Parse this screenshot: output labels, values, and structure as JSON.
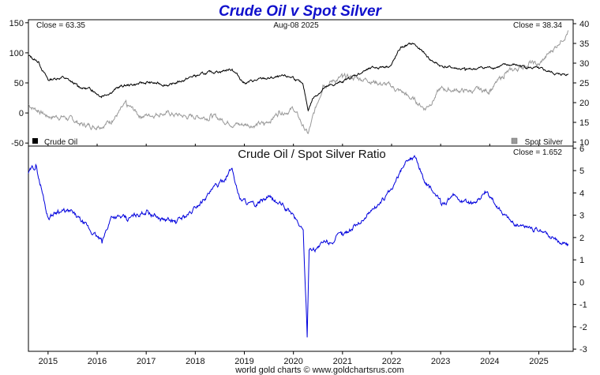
{
  "chart_data": [
    {
      "type": "line",
      "title": "Crude Oil v Spot Silver",
      "date_label": "Aug-08  2025",
      "close_left": "Close = 63.35",
      "close_right": "Close = 38.34",
      "left_axis": {
        "ticks": [
          150,
          100,
          50,
          0,
          -50
        ],
        "range": [
          -55,
          155
        ]
      },
      "right_axis": {
        "ticks": [
          40,
          35,
          30,
          25,
          20,
          15,
          10
        ],
        "range": [
          9,
          41
        ]
      },
      "series": [
        {
          "name": "Crude Oil",
          "axis": "left",
          "color": "#000000",
          "x": [
            2014.6,
            2014.8,
            2015.0,
            2015.3,
            2015.6,
            2015.9,
            2016.1,
            2016.5,
            2017.0,
            2017.5,
            2018.0,
            2018.4,
            2018.75,
            2019.0,
            2019.5,
            2020.0,
            2020.2,
            2020.3,
            2020.4,
            2020.6,
            2021.0,
            2021.5,
            2022.0,
            2022.2,
            2022.45,
            2022.8,
            2023.0,
            2023.5,
            2024.0,
            2024.5,
            2025.0,
            2025.4,
            2025.6
          ],
          "values": [
            95,
            85,
            55,
            60,
            45,
            38,
            28,
            45,
            50,
            47,
            62,
            68,
            73,
            50,
            58,
            60,
            45,
            5,
            25,
            40,
            52,
            72,
            80,
            110,
            115,
            88,
            78,
            72,
            76,
            80,
            73,
            64,
            65
          ]
        },
        {
          "name": "Spot Silver",
          "axis": "right",
          "color": "#999999",
          "x": [
            2014.6,
            2014.8,
            2015.0,
            2015.3,
            2015.7,
            2016.0,
            2016.3,
            2016.6,
            2016.9,
            2017.3,
            2017.8,
            2018.3,
            2018.9,
            2019.4,
            2019.7,
            2020.0,
            2020.2,
            2020.3,
            2020.6,
            2021.0,
            2021.5,
            2022.0,
            2022.3,
            2022.7,
            2023.0,
            2023.5,
            2024.0,
            2024.3,
            2024.8,
            2025.0,
            2025.4,
            2025.6
          ],
          "values": [
            19.5,
            18,
            16.5,
            16.5,
            14.5,
            14,
            15.5,
            19.5,
            16.5,
            17.5,
            16.5,
            16.5,
            14.5,
            14.5,
            17.5,
            18.5,
            14,
            12,
            24.5,
            26.5,
            26,
            24,
            22,
            18.5,
            23.5,
            23,
            23,
            27,
            30,
            29.5,
            35,
            38.3
          ]
        }
      ]
    },
    {
      "type": "line",
      "title": "Crude Oil  /  Spot Silver Ratio",
      "close_label": "Close = 1.652",
      "right_axis": {
        "ticks": [
          6,
          5,
          4,
          3,
          2,
          1,
          0,
          -1,
          -2,
          -3
        ],
        "range": [
          -3.1,
          6.1
        ]
      },
      "series": [
        {
          "name": "",
          "color": "#0000dd",
          "x": [
            2014.6,
            2014.75,
            2014.85,
            2015.0,
            2015.2,
            2015.5,
            2015.9,
            2016.1,
            2016.3,
            2016.6,
            2017.0,
            2017.3,
            2017.6,
            2017.9,
            2018.2,
            2018.5,
            2018.75,
            2018.9,
            2019.2,
            2019.5,
            2019.8,
            2020.0,
            2020.2,
            2020.28,
            2020.32,
            2020.45,
            2020.7,
            2021.0,
            2021.5,
            2022.0,
            2022.3,
            2022.5,
            2022.7,
            2023.0,
            2023.3,
            2023.6,
            2023.9,
            2024.2,
            2024.5,
            2024.8,
            2025.0,
            2025.3,
            2025.6
          ],
          "values": [
            4.9,
            5.2,
            4.3,
            2.9,
            3.2,
            3.1,
            2.2,
            1.8,
            3.0,
            2.8,
            3.2,
            2.8,
            2.7,
            3.1,
            3.8,
            4.4,
            5.1,
            3.8,
            3.4,
            3.8,
            3.4,
            3.0,
            2.3,
            -2.4,
            1.5,
            1.5,
            1.8,
            2.1,
            3.0,
            4.1,
            5.5,
            5.6,
            4.4,
            3.6,
            3.8,
            3.5,
            4.0,
            3.3,
            2.6,
            2.5,
            2.3,
            2.0,
            1.65
          ]
        }
      ]
    }
  ],
  "x_axis": {
    "ticks": [
      2015,
      2016,
      2017,
      2018,
      2019,
      2020,
      2021,
      2022,
      2023,
      2024,
      2025
    ],
    "range": [
      2014.6,
      2025.7
    ]
  },
  "legend": {
    "crude": "Crude Oil",
    "silver": "Spot Silver"
  },
  "footer": "world gold charts © www.goldchartsrus.com"
}
